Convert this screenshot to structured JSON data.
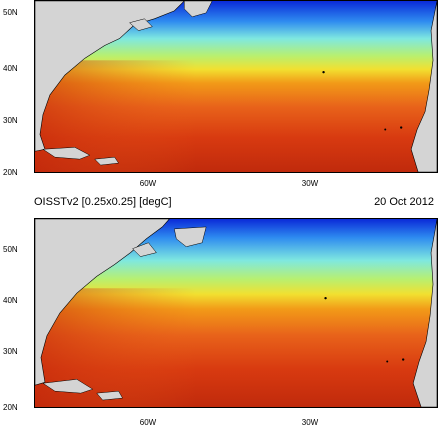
{
  "top_panel": {
    "lat_labels": [
      "50N",
      "40N",
      "30N",
      "20N"
    ],
    "lon_labels": [
      "60W",
      "30W"
    ]
  },
  "bottom_panel": {
    "title_left": "OISSTv2 [0.25x0.25] [degC]",
    "title_right": "20 Oct 2012",
    "lat_labels": [
      "50N",
      "40N",
      "30N",
      "20N"
    ],
    "lon_labels": [
      "60W",
      "30W"
    ]
  },
  "colors": {
    "land": "#d4d4d4",
    "warm": "#d83a10",
    "mid": "#f2a81a",
    "cool": "#9ce878",
    "cold": "#2060e8"
  }
}
